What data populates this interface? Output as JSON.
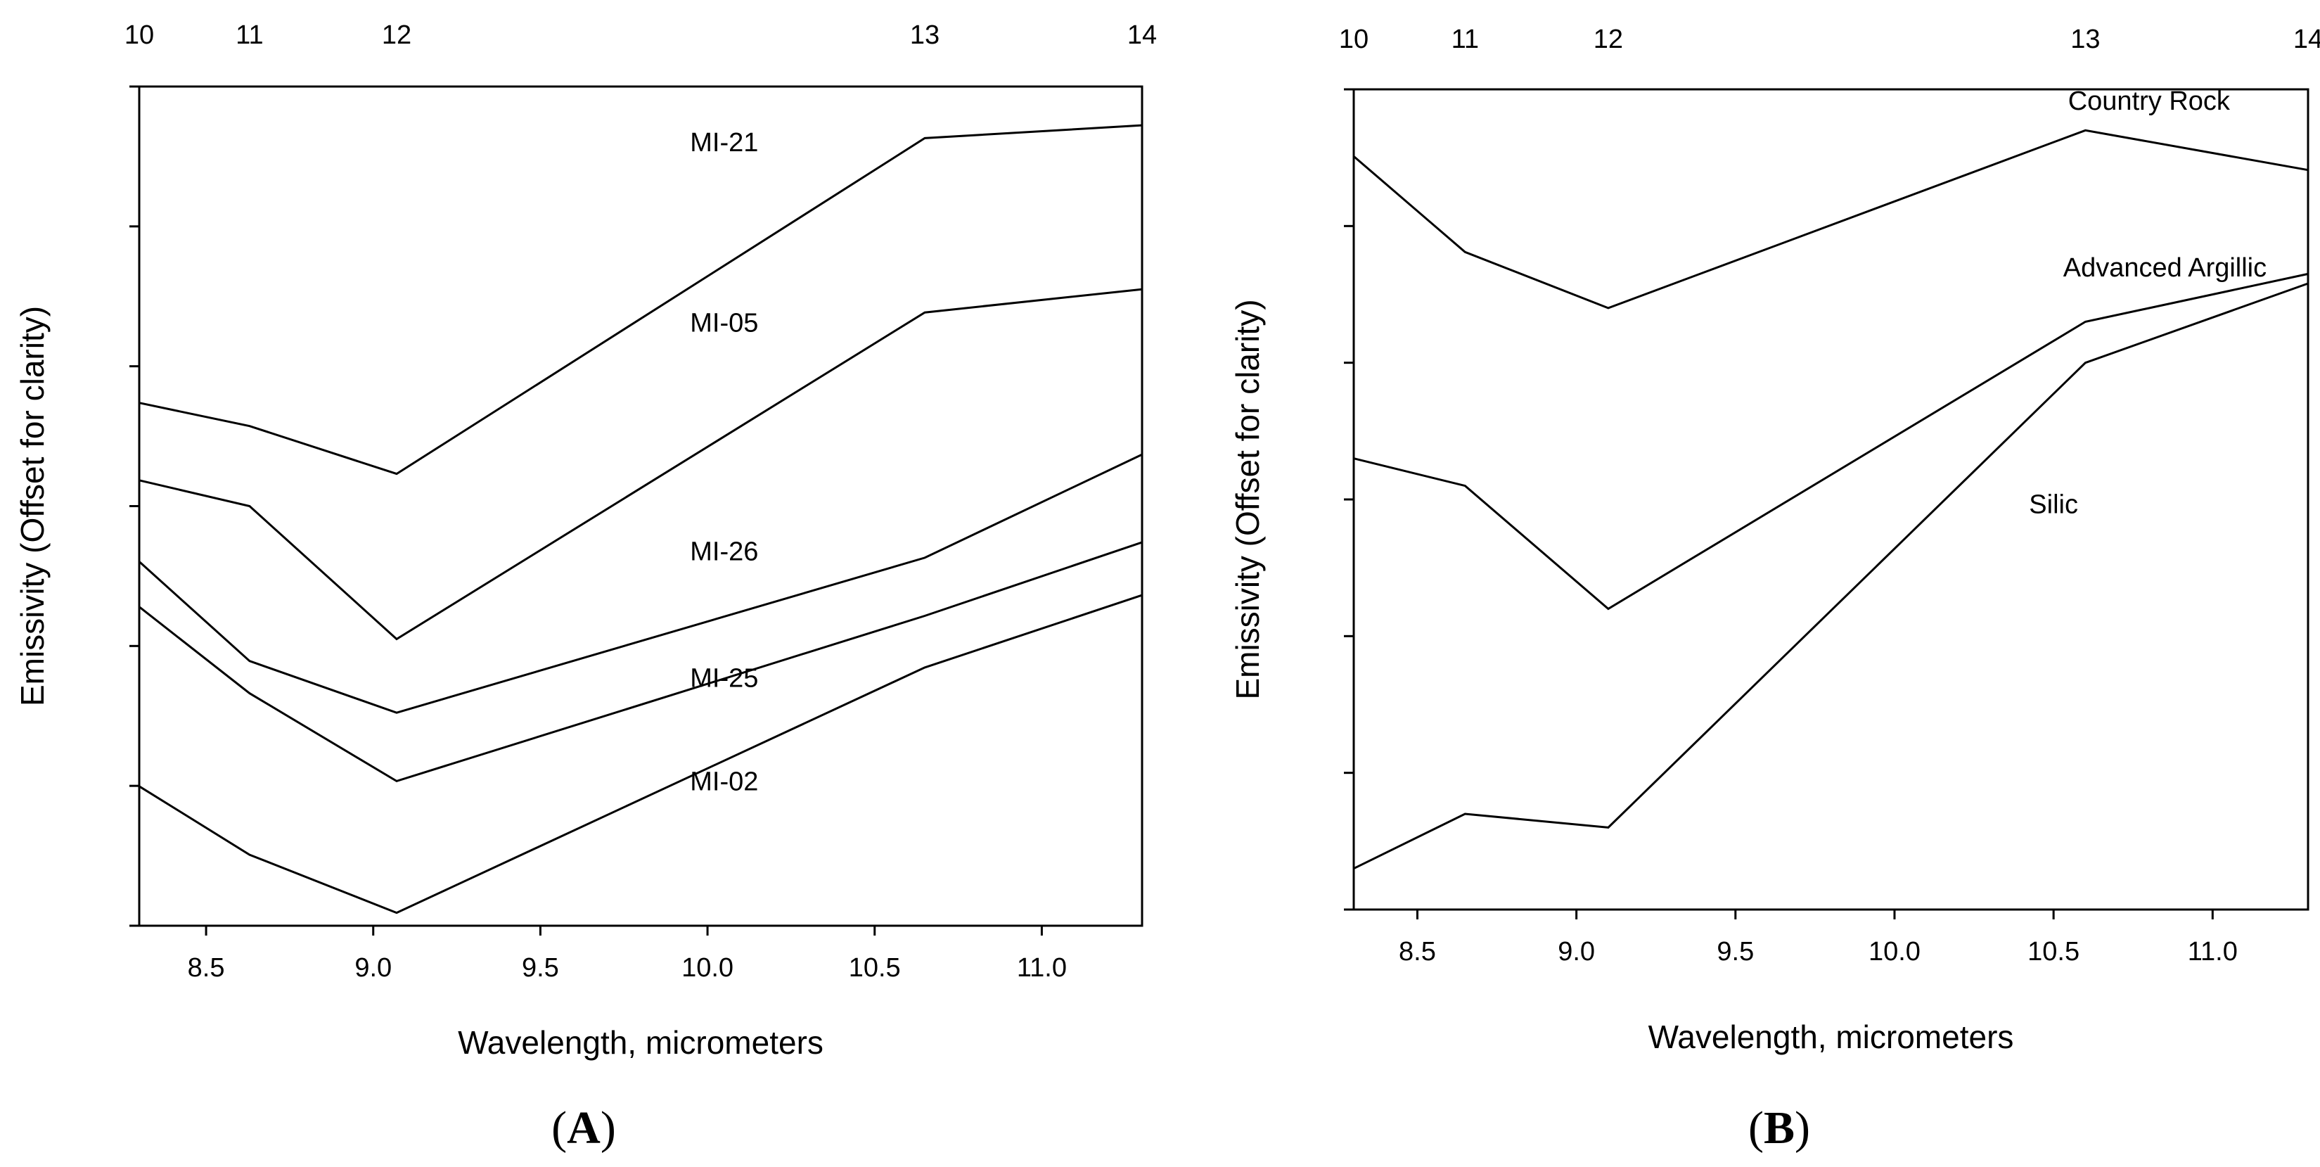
{
  "chart_data": [
    {
      "panel": "A",
      "type": "line",
      "xlabel": "Wavelength, micrometers",
      "ylabel": "Emissivity (Offset for clarity)",
      "xlim": [
        8.3,
        11.3
      ],
      "ylim": [
        0,
        6.5
      ],
      "x_ticks": [
        "8.5",
        "9.0",
        "9.5",
        "10.0",
        "10.5",
        "11.0"
      ],
      "y_tick_count": 7,
      "top_ticks": [
        {
          "x": 8.3,
          "label": "10"
        },
        {
          "x": 8.63,
          "label": "11"
        },
        {
          "x": 9.07,
          "label": "12"
        },
        {
          "x": 10.65,
          "label": "13"
        },
        {
          "x": 11.3,
          "label": "14"
        }
      ],
      "series": [
        {
          "name": "MI-21",
          "x": [
            8.3,
            8.63,
            9.07,
            10.65,
            11.3
          ],
          "y": [
            4.05,
            3.87,
            3.5,
            6.1,
            6.2
          ],
          "label_at": [
            10.05,
            6.0
          ]
        },
        {
          "name": "MI-05",
          "x": [
            8.3,
            8.63,
            9.07,
            10.65,
            11.3
          ],
          "y": [
            3.45,
            3.25,
            2.22,
            4.75,
            4.93
          ],
          "label_at": [
            10.05,
            4.6
          ]
        },
        {
          "name": "MI-26",
          "x": [
            8.3,
            8.63,
            9.07,
            10.65,
            11.3
          ],
          "y": [
            2.82,
            2.05,
            1.65,
            2.85,
            3.65
          ],
          "label_at": [
            10.05,
            2.83
          ]
        },
        {
          "name": "MI-25",
          "x": [
            8.3,
            8.63,
            9.07,
            10.65,
            11.3
          ],
          "y": [
            2.47,
            1.8,
            1.12,
            2.4,
            2.97
          ],
          "label_at": [
            10.05,
            1.85
          ]
        },
        {
          "name": "MI-02",
          "x": [
            8.3,
            8.63,
            9.07,
            10.65,
            11.3
          ],
          "y": [
            1.08,
            0.55,
            0.1,
            2.0,
            2.56
          ],
          "label_at": [
            10.05,
            1.05
          ]
        }
      ]
    },
    {
      "panel": "B",
      "type": "line",
      "xlabel": "Wavelength, micrometers",
      "ylabel": "Emissivity (Offset for clarity)",
      "xlim": [
        8.3,
        11.3
      ],
      "ylim": [
        0,
        6
      ],
      "x_ticks": [
        "8.5",
        "9.0",
        "9.5",
        "10.0",
        "10.5",
        "11.0"
      ],
      "y_tick_count": 7,
      "top_ticks": [
        {
          "x": 8.3,
          "label": "10"
        },
        {
          "x": 8.65,
          "label": "11"
        },
        {
          "x": 9.1,
          "label": "12"
        },
        {
          "x": 10.6,
          "label": "13"
        },
        {
          "x": 11.3,
          "label": "14"
        }
      ],
      "series": [
        {
          "name": "Country Rock",
          "x": [
            8.3,
            8.65,
            9.1,
            10.6,
            11.3
          ],
          "y": [
            5.51,
            4.81,
            4.4,
            5.7,
            5.41
          ],
          "label_at": [
            10.8,
            5.85
          ]
        },
        {
          "name": "Advanced Argillic",
          "x": [
            8.3,
            8.65,
            9.1,
            10.6,
            11.3
          ],
          "y": [
            3.3,
            3.1,
            2.2,
            4.3,
            4.65
          ],
          "label_at": [
            10.85,
            4.63
          ]
        },
        {
          "name": "Silic",
          "x": [
            8.3,
            8.65,
            9.1,
            10.6,
            11.3
          ],
          "y": [
            0.3,
            0.7,
            0.6,
            4.0,
            4.58
          ],
          "label_at": [
            10.5,
            2.9
          ]
        }
      ]
    }
  ],
  "panel_labels": [
    {
      "open": "(",
      "letter": "A",
      "close": ")"
    },
    {
      "open": "(",
      "letter": "B",
      "close": ")"
    }
  ]
}
